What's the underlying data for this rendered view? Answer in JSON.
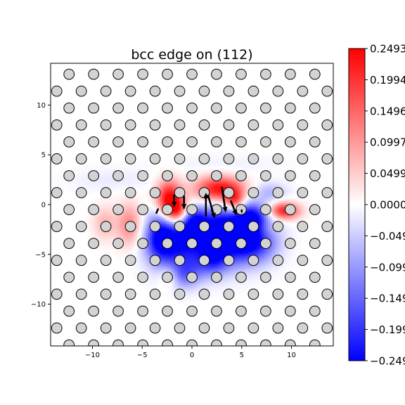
{
  "chart_data": {
    "type": "heatmap",
    "title": "bcc edge on (112)",
    "xlabel": "",
    "ylabel": "",
    "xlim": [
      -14.2,
      14.2
    ],
    "ylim": [
      -14.2,
      14.2
    ],
    "x_ticks": [
      -10,
      -5,
      0,
      5,
      10
    ],
    "y_ticks": [
      -10,
      -5,
      0,
      5,
      10
    ],
    "x_tick_labels": [
      "−10",
      "−5",
      "0",
      "5",
      "10"
    ],
    "y_tick_labels": [
      "−10",
      "−5",
      "0",
      "5",
      "10"
    ],
    "grid": false,
    "colormap": "bwr",
    "colors": {
      "min": "#0000ff",
      "mid": "#ffffff",
      "max": "#ff0000"
    },
    "colorbar": {
      "range": [
        -0.2493,
        0.2493
      ],
      "ticks": [
        0.2493,
        0.1994,
        0.1496,
        0.0997,
        0.0499,
        0.0,
        -0.0499,
        -0.0997,
        -0.1496,
        -0.1994,
        -0.2493
      ],
      "tick_labels": [
        "0.2493",
        "0.1994",
        "0.1496",
        "0.0997",
        "0.0499",
        "0.0000",
        "−0.049",
        "−0.099",
        "−0.149",
        "−0.199",
        "−0.249"
      ]
    },
    "atom_lattice": {
      "a1": [
        2.47,
        0
      ],
      "a2": [
        1.235,
        1.7
      ],
      "origin": [
        -12.35,
        -0.5
      ],
      "atom_color": "#d3d3d3"
    },
    "displacement_arrows": [
      {
        "x": -1.8,
        "y": 1.0,
        "dx": 0.0,
        "dy": -1.3
      },
      {
        "x": -0.8,
        "y": 0.9,
        "dx": 0.0,
        "dy": -1.4
      },
      {
        "x": 1.6,
        "y": 1.0,
        "dx": 0.7,
        "dy": -2.4
      },
      {
        "x": 1.4,
        "y": -1.2,
        "dx": 0.0,
        "dy": 2.4
      },
      {
        "x": 3.0,
        "y": 1.8,
        "dx": 0.4,
        "dy": -2.6
      },
      {
        "x": 3.9,
        "y": 0.4,
        "dx": 0.6,
        "dy": -1.5
      },
      {
        "x": -3.6,
        "y": -0.9,
        "dx": 0.25,
        "dy": 0.6
      },
      {
        "x": 5.0,
        "y": -0.5,
        "dx": 0.0,
        "dy": -0.4
      }
    ],
    "field_blobs": [
      {
        "x": -2.3,
        "y": 0.6,
        "sx": 0.9,
        "sy": 1.3,
        "value": 0.25
      },
      {
        "x": -1.5,
        "y": -0.6,
        "sx": 0.8,
        "sy": 0.9,
        "value": 0.2
      },
      {
        "x": 2.8,
        "y": 1.6,
        "sx": 1.7,
        "sy": 0.9,
        "value": 0.25
      },
      {
        "x": 4.3,
        "y": 0.3,
        "sx": 0.7,
        "sy": 0.8,
        "value": 0.2
      },
      {
        "x": 9.2,
        "y": -0.6,
        "sx": 1.1,
        "sy": 0.6,
        "value": 0.23
      },
      {
        "x": -6.3,
        "y": -2.0,
        "sx": 0.9,
        "sy": 1.5,
        "value": 0.12
      },
      {
        "x": -8.8,
        "y": -1.8,
        "sx": 0.8,
        "sy": 1.2,
        "value": 0.07
      },
      {
        "x": -2.3,
        "y": -7.2,
        "sx": 0.7,
        "sy": 0.8,
        "value": 0.08
      },
      {
        "x": 7.5,
        "y": -2.2,
        "sx": 0.8,
        "sy": 0.8,
        "value": 0.06
      },
      {
        "x": -1.0,
        "y": -3.8,
        "sx": 2.1,
        "sy": 1.8,
        "value": -0.24
      },
      {
        "x": -3.2,
        "y": -3.2,
        "sx": 1.0,
        "sy": 1.7,
        "value": -0.18
      },
      {
        "x": 0.3,
        "y": -1.8,
        "sx": 0.9,
        "sy": 1.1,
        "value": -0.2
      },
      {
        "x": 3.8,
        "y": -3.0,
        "sx": 1.6,
        "sy": 2.0,
        "value": -0.24
      },
      {
        "x": 6.3,
        "y": -3.6,
        "sx": 1.6,
        "sy": 1.5,
        "value": -0.22
      },
      {
        "x": 6.0,
        "y": -1.2,
        "sx": 1.4,
        "sy": 1.0,
        "value": -0.2
      },
      {
        "x": 2.2,
        "y": -3.5,
        "sx": 0.9,
        "sy": 1.8,
        "value": -0.15
      },
      {
        "x": -0.8,
        "y": -7.0,
        "sx": 1.2,
        "sy": 1.0,
        "value": -0.12
      },
      {
        "x": 1.8,
        "y": -5.8,
        "sx": 1.3,
        "sy": 1.0,
        "value": -0.08
      },
      {
        "x": 7.8,
        "y": 1.3,
        "sx": 1.2,
        "sy": 0.7,
        "value": -0.07
      },
      {
        "x": 3.0,
        "y": 4.0,
        "sx": 4.0,
        "sy": 0.7,
        "value": -0.015
      },
      {
        "x": -8.0,
        "y": 2.5,
        "sx": 3.0,
        "sy": 0.8,
        "value": -0.02
      }
    ]
  }
}
